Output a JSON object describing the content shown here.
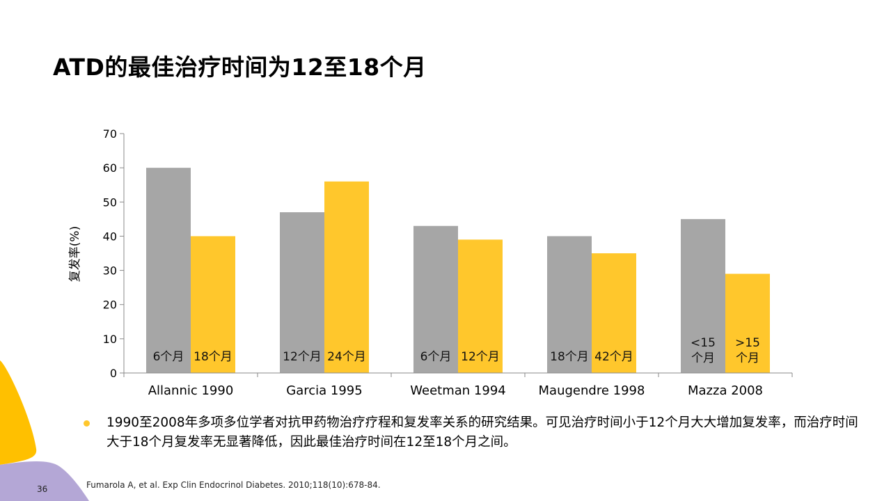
{
  "title": "ATD的最佳治疗时间为12至18个月",
  "chart_data": {
    "type": "bar",
    "categories": [
      "Allannic 1990",
      "Garcia 1995",
      "Weetman 1994",
      "Maugendre 1998",
      "Mazza 2008"
    ],
    "series": [
      {
        "values": [
          60,
          47,
          43,
          40,
          45
        ],
        "labels": [
          [
            "6个月"
          ],
          [
            "12个月"
          ],
          [
            "6个月"
          ],
          [
            "18个月"
          ],
          [
            "<15",
            "个月"
          ]
        ],
        "color": "#a6a6a6"
      },
      {
        "values": [
          40,
          56,
          39,
          35,
          29
        ],
        "labels": [
          [
            "18个月"
          ],
          [
            "24个月"
          ],
          [
            "12个月"
          ],
          [
            "42个月"
          ],
          [
            ">15",
            "个月"
          ]
        ],
        "color": "#ffc72c"
      }
    ],
    "ylabel": "复发率(%)",
    "xlabel": "",
    "ylim": [
      0,
      70
    ],
    "yticks": [
      "0",
      "10",
      "20",
      "30",
      "40",
      "50",
      "60",
      "70"
    ],
    "grid": false
  },
  "bullet": "1990至2008年多项多位学者对抗甲药物治疗疗程和复发率关系的研究结果。可见治疗时间小于12个月大大增加复发率，而治疗时间大于18个月复发率无显著降低，因此最佳治疗时间在12至18个月之间。",
  "reference": "Fumarola A, et al. Exp Clin Endocrinol Diabetes. 2010;118(10):678-84.",
  "page_number": "36",
  "colors": {
    "accent_yellow": "#ffc000",
    "accent_purple": "#b4a7d6"
  }
}
